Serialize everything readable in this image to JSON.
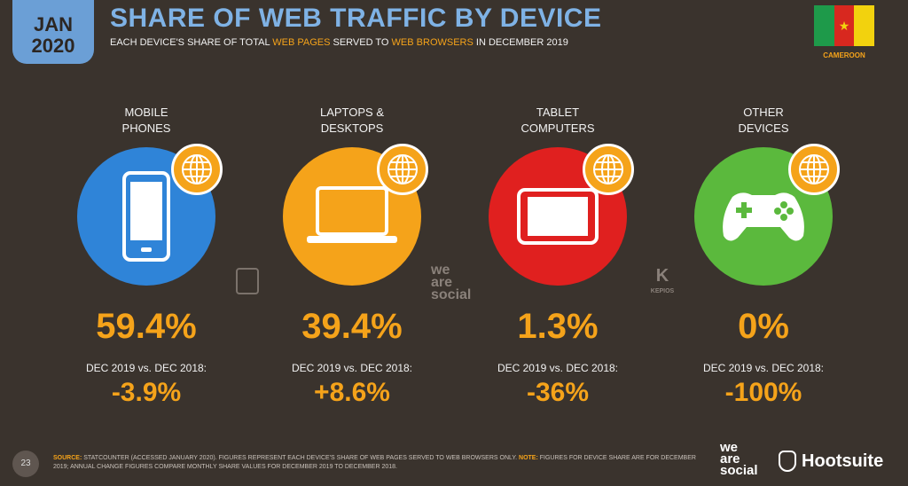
{
  "header": {
    "month": "JAN",
    "year": "2020",
    "title": "SHARE OF WEB TRAFFIC BY DEVICE",
    "subtitle_part1": "EACH DEVICE'S SHARE OF TOTAL ",
    "subtitle_hl1": "WEB PAGES",
    "subtitle_part2": " SERVED TO ",
    "subtitle_hl2": "WEB BROWSERS",
    "subtitle_part3": " IN DECEMBER 2019",
    "country": "CAMEROON"
  },
  "colors": {
    "background": "#3a332d",
    "accent": "#f5a31a",
    "mobile": "#2f84d8",
    "laptop": "#f5a31a",
    "tablet": "#e0201f",
    "other": "#5bb93d"
  },
  "devices": [
    {
      "label": "MOBILE\nPHONES",
      "share": "59.4%",
      "compare_label": "DEC 2019 vs. DEC 2018:",
      "change": "-3.9%",
      "icon": "mobile-phone-icon"
    },
    {
      "label": "LAPTOPS &\nDESKTOPS",
      "share": "39.4%",
      "compare_label": "DEC 2019 vs. DEC 2018:",
      "change": "+8.6%",
      "icon": "laptop-icon"
    },
    {
      "label": "TABLET\nCOMPUTERS",
      "share": "1.3%",
      "compare_label": "DEC 2019 vs. DEC 2018:",
      "change": "-36%",
      "icon": "tablet-icon"
    },
    {
      "label": "OTHER\nDEVICES",
      "share": "0%",
      "compare_label": "DEC 2019 vs. DEC 2018:",
      "change": "-100%",
      "icon": "gamepad-icon"
    }
  ],
  "chart_data": {
    "type": "table",
    "categories": [
      "MOBILE PHONES",
      "LAPTOPS & DESKTOPS",
      "TABLET COMPUTERS",
      "OTHER DEVICES"
    ],
    "series": [
      {
        "name": "SHARE OF WEB TRAFFIC",
        "values": [
          59.4,
          39.4,
          1.3,
          0
        ]
      },
      {
        "name": "DEC 2019 vs. DEC 2018",
        "values": [
          -3.9,
          8.6,
          -36,
          -100
        ]
      }
    ],
    "title": "SHARE OF WEB TRAFFIC BY DEVICE"
  },
  "watermarks": {
    "we": "we",
    "are": "are",
    "social": "social",
    "kepios": "KEPIOS"
  },
  "footer": {
    "page_number": "23",
    "source_label": "SOURCE:",
    "source_text": " STATCOUNTER (ACCESSED JANUARY 2020). FIGURES REPRESENT EACH DEVICE'S SHARE OF WEB PAGES SERVED TO WEB BROWSERS ONLY. ",
    "note_label": "NOTE:",
    "note_text": " FIGURES FOR DEVICE SHARE ARE FOR DECEMBER 2019; ANNUAL CHANGE FIGURES COMPARE MONTHLY SHARE VALUES FOR DECEMBER 2019 TO DECEMBER 2018."
  },
  "brands": {
    "we": "we",
    "are": "are",
    "social": "social",
    "hootsuite": "Hootsuite"
  }
}
